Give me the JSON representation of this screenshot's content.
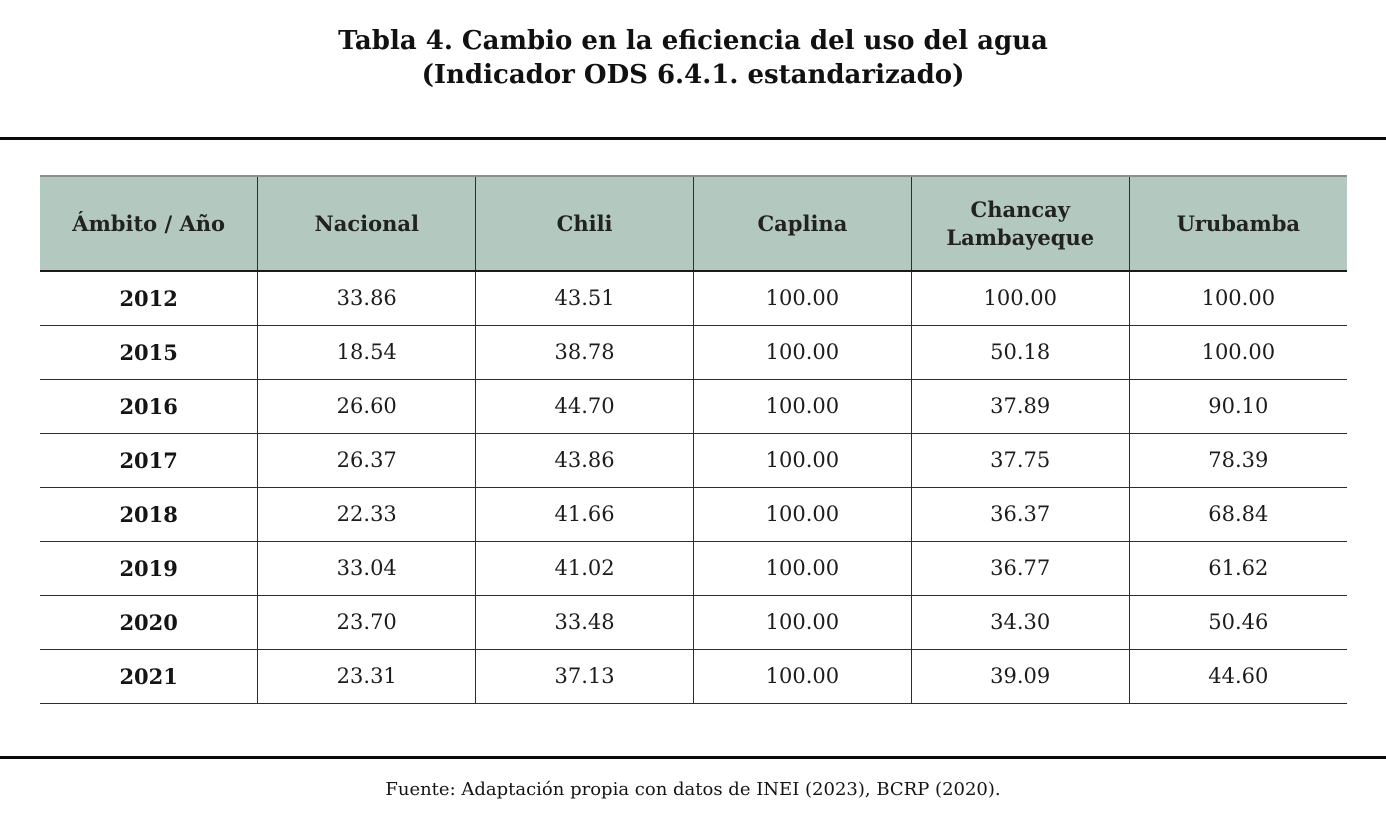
{
  "title": {
    "line1": "Tabla 4. Cambio en la eficiencia del uso del agua",
    "line2": "(Indicador ODS 6.4.1. estandarizado)"
  },
  "table": {
    "columns": [
      "Ámbito / Año",
      "Nacional",
      "Chili",
      "Caplina",
      "Chancay Lambayeque",
      "Urubamba"
    ],
    "rows": [
      {
        "year": "2012",
        "values": [
          "33.86",
          "43.51",
          "100.00",
          "100.00",
          "100.00"
        ]
      },
      {
        "year": "2015",
        "values": [
          "18.54",
          "38.78",
          "100.00",
          "50.18",
          "100.00"
        ]
      },
      {
        "year": "2016",
        "values": [
          "26.60",
          "44.70",
          "100.00",
          "37.89",
          "90.10"
        ]
      },
      {
        "year": "2017",
        "values": [
          "26.37",
          "43.86",
          "100.00",
          "37.75",
          "78.39"
        ]
      },
      {
        "year": "2018",
        "values": [
          "22.33",
          "41.66",
          "100.00",
          "36.37",
          "68.84"
        ]
      },
      {
        "year": "2019",
        "values": [
          "33.04",
          "41.02",
          "100.00",
          "36.77",
          "61.62"
        ]
      },
      {
        "year": "2020",
        "values": [
          "23.70",
          "33.48",
          "100.00",
          "34.30",
          "50.46"
        ]
      },
      {
        "year": "2021",
        "values": [
          "23.31",
          "37.13",
          "100.00",
          "39.09",
          "44.60"
        ]
      }
    ]
  },
  "footer": {
    "source": "Fuente: Adaptación propia con datos de INEI (2023), BCRP (2020)."
  },
  "colors": {
    "header_bg": "#b3c9bf",
    "border_color": "#2e2e2e",
    "rule_color": "#0a0a0a",
    "text_color": "#1c1c1c"
  }
}
